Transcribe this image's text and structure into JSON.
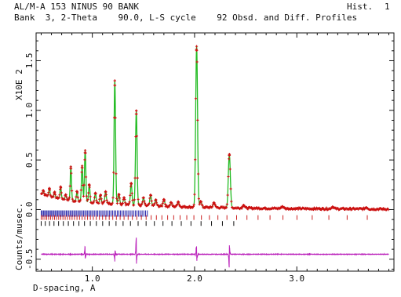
{
  "header": {
    "title": "AL/M-A 153 NINUS 90 BANK",
    "hist_label": "Hist.",
    "hist_number": "1",
    "subtitle": "Bank  3, 2-Theta    90.0, L-S cycle    92 Obsd. and Diff. Profiles"
  },
  "axes": {
    "ylabel": "Counts/musec.",
    "yscale_label": "X10E  2",
    "xlabel": "D-spacing, A"
  },
  "colors": {
    "observed": "#cc1111",
    "calculated": "#22bb22",
    "difference": "#bb22bb",
    "tick_red": "#cc2222",
    "tick_black": "#111111",
    "tick_blue": "#2222aa",
    "frame": "#111111"
  },
  "chart_data": {
    "type": "line",
    "xlim": [
      0.45,
      3.95
    ],
    "ylim": [
      -0.62,
      1.78
    ],
    "y_multiplier": "X10E  2",
    "x_ticks": [
      {
        "value": 1.0,
        "label": "1.0"
      },
      {
        "value": 2.0,
        "label": "2.0"
      },
      {
        "value": 3.0,
        "label": "3.0"
      }
    ],
    "x_minor_tick_step": 0.1,
    "y_ticks": [
      {
        "value": 0.0,
        "label": "0.0"
      },
      {
        "value": 0.5,
        "label": "0.5"
      },
      {
        "value": 1.0,
        "label": "1.0"
      },
      {
        "value": 1.5,
        "label": "1.5"
      },
      {
        "value": -0.5,
        "label": "-0.5"
      }
    ],
    "y_minor_tick_step": 0.1,
    "background": [
      [
        0.5,
        0.16
      ],
      [
        0.6,
        0.13
      ],
      [
        0.8,
        0.09
      ],
      [
        1.0,
        0.07
      ],
      [
        1.2,
        0.06
      ],
      [
        1.5,
        0.04
      ],
      [
        2.0,
        0.025
      ],
      [
        2.5,
        0.015
      ],
      [
        3.0,
        0.01
      ],
      [
        3.9,
        0.005
      ]
    ],
    "peaks": [
      {
        "d": 0.52,
        "h": 0.04
      },
      {
        "d": 0.58,
        "h": 0.08
      },
      {
        "d": 0.63,
        "h": 0.05
      },
      {
        "d": 0.69,
        "h": 0.12
      },
      {
        "d": 0.74,
        "h": 0.05
      },
      {
        "d": 0.79,
        "h": 0.34
      },
      {
        "d": 0.85,
        "h": 0.1
      },
      {
        "d": 0.9,
        "h": 0.36
      },
      {
        "d": 0.93,
        "h": 0.52
      },
      {
        "d": 0.97,
        "h": 0.18
      },
      {
        "d": 1.03,
        "h": 0.1
      },
      {
        "d": 1.08,
        "h": 0.08
      },
      {
        "d": 1.13,
        "h": 0.12
      },
      {
        "d": 1.22,
        "h": 1.24
      },
      {
        "d": 1.26,
        "h": 0.1
      },
      {
        "d": 1.31,
        "h": 0.07
      },
      {
        "d": 1.38,
        "h": 0.22
      },
      {
        "d": 1.43,
        "h": 0.95
      },
      {
        "d": 1.5,
        "h": 0.08
      },
      {
        "d": 1.57,
        "h": 0.11
      },
      {
        "d": 1.62,
        "h": 0.06
      },
      {
        "d": 1.7,
        "h": 0.07
      },
      {
        "d": 1.77,
        "h": 0.04
      },
      {
        "d": 1.84,
        "h": 0.05
      },
      {
        "d": 2.02,
        "h": 1.62
      },
      {
        "d": 2.06,
        "h": 0.06
      },
      {
        "d": 2.19,
        "h": 0.05
      },
      {
        "d": 2.34,
        "h": 0.54
      },
      {
        "d": 2.48,
        "h": 0.03
      },
      {
        "d": 2.86,
        "h": 0.02
      },
      {
        "d": 3.35,
        "h": 0.02
      },
      {
        "d": 3.68,
        "h": 0.015
      }
    ],
    "reflection_ticks": {
      "blue_row_y": -0.04,
      "red_row_y": -0.08,
      "black_row_y": -0.14,
      "range": [
        0.5,
        3.85
      ]
    },
    "difference_baseline": -0.45,
    "difference_features": [
      {
        "d": 0.93,
        "amp": 0.08
      },
      {
        "d": 1.22,
        "amp": -0.06
      },
      {
        "d": 1.43,
        "amp": 0.16
      },
      {
        "d": 2.02,
        "amp": 0.1
      },
      {
        "d": 2.34,
        "amp": -0.14
      }
    ]
  }
}
